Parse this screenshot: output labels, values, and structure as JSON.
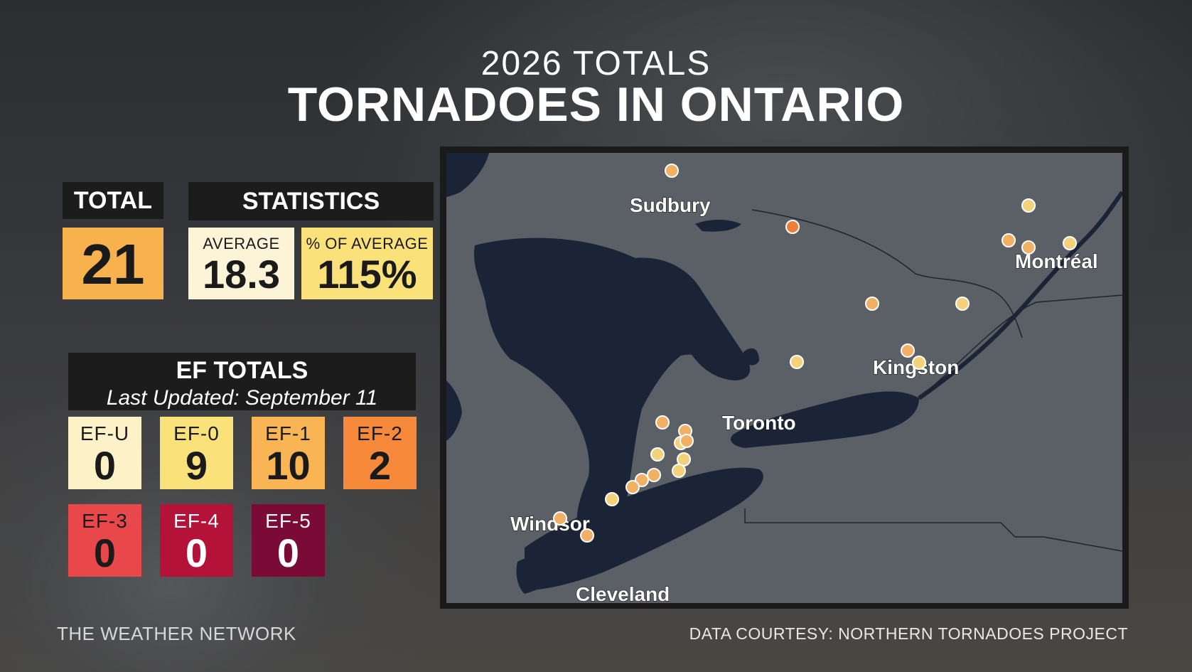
{
  "header": {
    "subtitle": "2026 TOTALS",
    "title": "TORNADOES IN ONTARIO"
  },
  "total": {
    "label": "TOTAL",
    "value": "21"
  },
  "statistics": {
    "label": "STATISTICS",
    "average": {
      "label": "AVERAGE",
      "value": "18.3"
    },
    "pct_of_average": {
      "label": "% OF AVERAGE",
      "value": "115%"
    }
  },
  "ef_totals": {
    "title": "EF TOTALS",
    "updated": "Last Updated: September 11",
    "items": [
      {
        "label": "EF-U",
        "value": "0",
        "color": "#fdf1c8"
      },
      {
        "label": "EF-0",
        "value": "9",
        "color": "#fbe17a"
      },
      {
        "label": "EF-1",
        "value": "10",
        "color": "#f9b553"
      },
      {
        "label": "EF-2",
        "value": "2",
        "color": "#f7893a"
      },
      {
        "label": "EF-3",
        "value": "0",
        "color": "#e8484a"
      },
      {
        "label": "EF-4",
        "value": "0",
        "color": "#b5123a"
      },
      {
        "label": "EF-5",
        "value": "0",
        "color": "#7a0a36"
      }
    ]
  },
  "map": {
    "cities": [
      "Sudbury",
      "Montréal",
      "Kingston",
      "Toronto",
      "Windsor",
      "Cleveland"
    ]
  },
  "footer": {
    "brand": "THE WEATHER NETWORK",
    "credit": "DATA COURTESY: NORTHERN TORNADOES PROJECT"
  },
  "colors": {
    "land": "#5a6066",
    "water": "#1b2436",
    "ef0_marker": "#f3d27a",
    "ef1_marker": "#f2b064",
    "ef2_marker": "#f07c3c"
  }
}
